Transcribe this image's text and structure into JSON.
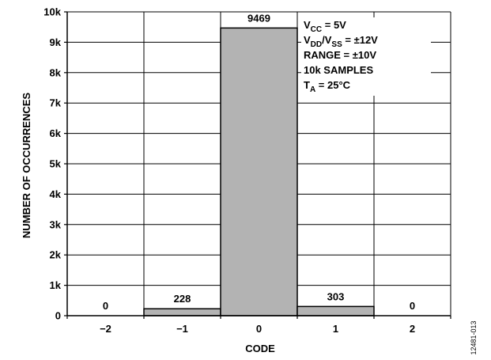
{
  "chart_data": {
    "type": "bar",
    "categories": [
      "−2",
      "−1",
      "0",
      "1",
      "2"
    ],
    "values": [
      0,
      228,
      9469,
      303,
      0
    ],
    "data_labels": [
      "0",
      "228",
      "9469",
      "303",
      "0"
    ],
    "xlabel": "CODE",
    "ylabel": "NUMBER OF OCCURRENCES",
    "ylim": [
      0,
      10000
    ],
    "y_ticks": [
      {
        "value": 0,
        "label": "0"
      },
      {
        "value": 1000,
        "label": "1k"
      },
      {
        "value": 2000,
        "label": "2k"
      },
      {
        "value": 3000,
        "label": "3k"
      },
      {
        "value": 4000,
        "label": "4k"
      },
      {
        "value": 5000,
        "label": "5k"
      },
      {
        "value": 6000,
        "label": "6k"
      },
      {
        "value": 7000,
        "label": "7k"
      },
      {
        "value": 8000,
        "label": "8k"
      },
      {
        "value": 9000,
        "label": "9k"
      },
      {
        "value": 10000,
        "label": "10k"
      }
    ],
    "grid": true,
    "bar_color": "#b3b3b3",
    "annotation": {
      "placement": "top-right",
      "lines": [
        [
          {
            "t": "V"
          },
          {
            "t": "CC",
            "sub": true
          },
          {
            "t": " = 5V"
          }
        ],
        [
          {
            "t": "V"
          },
          {
            "t": "DD",
            "sub": true
          },
          {
            "t": "/V"
          },
          {
            "t": "SS",
            "sub": true
          },
          {
            "t": " = ±12V"
          }
        ],
        [
          {
            "t": "RANGE = ±10V"
          }
        ],
        [
          {
            "t": "10k SAMPLES"
          }
        ],
        [
          {
            "t": "T"
          },
          {
            "t": "A",
            "sub": true
          },
          {
            "t": " = 25°C"
          }
        ]
      ]
    },
    "figure_id": "12481-013"
  }
}
